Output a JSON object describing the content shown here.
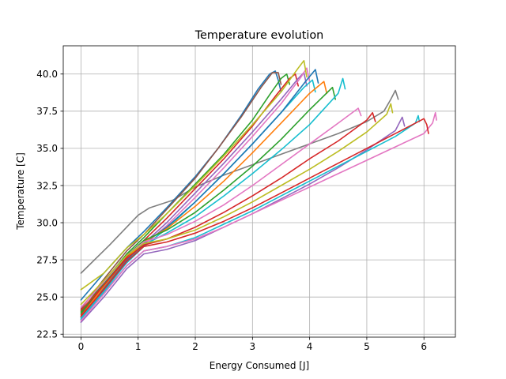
{
  "chart_data": {
    "type": "line",
    "title": "Temperature evolution",
    "xlabel": "Energy Consumed [J]",
    "ylabel": "Temperature [C]",
    "xlim": [
      -0.31,
      6.55
    ],
    "ylim": [
      22.3,
      41.9
    ],
    "xticks": [
      0,
      1,
      2,
      3,
      4,
      5,
      6
    ],
    "yticks": [
      22.5,
      25.0,
      27.5,
      30.0,
      32.5,
      35.0,
      37.5,
      40.0
    ],
    "ytick_labels": [
      "22.5",
      "25.0",
      "27.5",
      "30.0",
      "32.5",
      "35.0",
      "37.5",
      "40.0"
    ],
    "grid": true,
    "legend": "none",
    "palette": [
      "#1f77b4",
      "#ff7f0e",
      "#2ca02c",
      "#d62728",
      "#9467bd",
      "#8c564b",
      "#e377c2",
      "#7f7f7f",
      "#bcbd22",
      "#17becf"
    ],
    "series": [
      {
        "color": "#7f7f7f",
        "x": [
          0,
          0.5,
          1.0,
          1.2,
          1.6,
          2.0,
          2.5,
          3.0,
          3.5,
          4.0,
          4.5,
          5.0,
          5.3,
          5.42,
          5.5,
          5.55
        ],
        "y": [
          26.6,
          28.5,
          30.5,
          31.0,
          31.5,
          32.4,
          33.2,
          33.9,
          34.6,
          35.3,
          36.0,
          36.8,
          37.5,
          38.3,
          38.9,
          38.3
        ]
      },
      {
        "color": "#1f77b4",
        "x": [
          0,
          0.4,
          0.8,
          1.1,
          1.5,
          2.0,
          2.4,
          2.8,
          3.1,
          3.3,
          3.4,
          3.45,
          3.5
        ],
        "y": [
          24.8,
          26.6,
          28.3,
          29.4,
          31.0,
          33.1,
          35.0,
          37.2,
          39.0,
          40.0,
          40.2,
          39.6,
          38.8
        ]
      },
      {
        "color": "#8c564b",
        "x": [
          0,
          0.4,
          0.8,
          1.1,
          1.5,
          2.0,
          2.4,
          2.8,
          3.15,
          3.35,
          3.45,
          3.5
        ],
        "y": [
          24.2,
          26.2,
          28.1,
          29.2,
          30.9,
          33.0,
          35.0,
          37.1,
          39.1,
          40.1,
          40.1,
          39.3
        ]
      },
      {
        "color": "#2ca02c",
        "x": [
          0,
          0.4,
          0.8,
          1.1,
          1.5,
          2.0,
          2.5,
          3.0,
          3.3,
          3.5,
          3.6,
          3.65
        ],
        "y": [
          24.0,
          26.0,
          27.9,
          29.0,
          30.6,
          32.6,
          34.6,
          36.9,
          38.6,
          39.7,
          40.0,
          39.3
        ]
      },
      {
        "color": "#d62728",
        "x": [
          0,
          0.4,
          0.8,
          1.1,
          1.5,
          2.0,
          2.5,
          3.0,
          3.4,
          3.65,
          3.75,
          3.8
        ],
        "y": [
          23.8,
          25.8,
          27.7,
          28.8,
          30.3,
          32.3,
          34.3,
          36.5,
          38.5,
          39.7,
          40.0,
          39.2
        ]
      },
      {
        "color": "#9467bd",
        "x": [
          0,
          0.4,
          0.8,
          1.1,
          1.5,
          2.0,
          2.5,
          3.0,
          3.5,
          3.8,
          3.9,
          3.95
        ],
        "y": [
          23.6,
          25.6,
          27.5,
          28.6,
          30.0,
          32.0,
          34.0,
          36.1,
          38.3,
          39.7,
          40.1,
          39.2
        ]
      },
      {
        "color": "#e377c2",
        "x": [
          0,
          0.4,
          0.8,
          1.1,
          1.5,
          2.0,
          2.5,
          3.0,
          3.5,
          3.85,
          3.95,
          4.0
        ],
        "y": [
          23.5,
          25.5,
          27.4,
          28.5,
          29.8,
          31.7,
          33.7,
          35.8,
          38.0,
          39.8,
          40.4,
          39.5
        ]
      },
      {
        "color": "#bcbd22",
        "x": [
          0,
          0.4,
          0.8,
          1.1,
          1.5,
          2.0,
          2.5,
          3.0,
          3.5,
          3.8,
          3.9,
          3.95
        ],
        "y": [
          25.5,
          26.6,
          28.3,
          29.2,
          30.6,
          32.5,
          34.5,
          36.6,
          38.8,
          40.4,
          40.9,
          39.8
        ]
      },
      {
        "color": "#17becf",
        "x": [
          0,
          0.4,
          0.8,
          1.1,
          1.5,
          2.0,
          2.5,
          3.0,
          3.5,
          3.9,
          4.05,
          4.1
        ],
        "y": [
          23.4,
          25.4,
          27.3,
          28.4,
          29.6,
          31.4,
          33.3,
          35.3,
          37.4,
          39.1,
          39.6,
          38.8
        ]
      },
      {
        "color": "#1f77b4",
        "x": [
          0,
          0.4,
          0.8,
          1.1,
          1.5,
          2.0,
          2.5,
          3.0,
          3.5,
          3.95,
          4.1,
          4.15
        ],
        "y": [
          23.6,
          25.6,
          27.5,
          28.6,
          29.7,
          31.4,
          33.3,
          35.3,
          37.4,
          39.6,
          40.3,
          39.4
        ]
      },
      {
        "color": "#ff7f0e",
        "x": [
          0,
          0.4,
          0.8,
          1.1,
          1.5,
          2.0,
          2.5,
          3.0,
          3.5,
          4.0,
          4.25,
          4.3
        ],
        "y": [
          23.7,
          25.7,
          27.6,
          28.7,
          29.6,
          31.1,
          32.8,
          34.7,
          36.7,
          38.7,
          39.5,
          38.7
        ]
      },
      {
        "color": "#2ca02c",
        "x": [
          0,
          0.4,
          0.8,
          1.1,
          1.5,
          2.0,
          2.5,
          3.0,
          3.5,
          4.0,
          4.4,
          4.45
        ],
        "y": [
          23.9,
          25.9,
          27.8,
          28.8,
          29.5,
          30.7,
          32.2,
          33.8,
          35.6,
          37.6,
          39.1,
          38.3
        ]
      },
      {
        "color": "#17becf",
        "x": [
          0,
          0.4,
          0.8,
          1.1,
          1.5,
          2.0,
          2.5,
          3.0,
          3.5,
          4.0,
          4.5,
          4.58,
          4.62
        ],
        "y": [
          23.5,
          25.5,
          27.4,
          28.5,
          29.3,
          30.4,
          31.8,
          33.3,
          34.9,
          36.6,
          38.7,
          39.7,
          39.0
        ]
      },
      {
        "color": "#e377c2",
        "x": [
          0,
          0.4,
          0.8,
          1.1,
          1.5,
          2.0,
          2.5,
          3.0,
          3.5,
          4.0,
          4.5,
          4.85,
          4.9
        ],
        "y": [
          24.3,
          26.0,
          27.8,
          28.7,
          29.2,
          30.1,
          31.2,
          32.5,
          33.9,
          35.3,
          36.7,
          37.7,
          37.2
        ]
      },
      {
        "color": "#d62728",
        "x": [
          0,
          0.4,
          0.8,
          1.1,
          1.5,
          2.0,
          2.5,
          3.0,
          3.5,
          4.0,
          4.5,
          5.0,
          5.1,
          5.15
        ],
        "y": [
          24.1,
          25.8,
          27.6,
          28.5,
          28.9,
          29.7,
          30.7,
          31.8,
          33.0,
          34.3,
          35.5,
          36.9,
          37.4,
          36.8
        ]
      },
      {
        "color": "#bcbd22",
        "x": [
          0,
          0.4,
          0.8,
          1.1,
          1.5,
          2.0,
          2.5,
          3.0,
          3.5,
          4.0,
          4.5,
          5.0,
          5.35,
          5.42,
          5.45
        ],
        "y": [
          24.5,
          26.1,
          27.8,
          28.6,
          28.9,
          29.5,
          30.4,
          31.4,
          32.5,
          33.6,
          34.8,
          36.1,
          37.3,
          38.0,
          37.4
        ]
      },
      {
        "color": "#9467bd",
        "x": [
          0,
          0.4,
          0.8,
          1.1,
          1.5,
          2.0,
          2.5,
          3.0,
          3.5,
          4.0,
          4.5,
          5.0,
          5.5,
          5.62,
          5.66
        ],
        "y": [
          23.3,
          25.0,
          26.9,
          27.9,
          28.2,
          28.8,
          29.7,
          30.6,
          31.6,
          32.6,
          33.7,
          34.9,
          36.2,
          37.1,
          36.5
        ]
      },
      {
        "color": "#17becf",
        "x": [
          0,
          0.4,
          0.8,
          1.1,
          1.5,
          2.0,
          2.5,
          3.0,
          3.5,
          4.0,
          4.5,
          5.0,
          5.5,
          5.85,
          5.9,
          5.92
        ],
        "y": [
          23.6,
          25.3,
          27.1,
          28.1,
          28.4,
          29.0,
          29.9,
          30.8,
          31.8,
          32.8,
          33.8,
          34.8,
          35.8,
          36.7,
          37.2,
          36.8
        ]
      },
      {
        "color": "#e377c2",
        "x": [
          0,
          0.4,
          0.8,
          1.1,
          1.5,
          2.0,
          2.5,
          3.0,
          3.5,
          4.0,
          4.5,
          5.0,
          5.5,
          6.0,
          6.15,
          6.2,
          6.22
        ],
        "y": [
          23.4,
          25.2,
          27.1,
          28.1,
          28.4,
          28.9,
          29.7,
          30.6,
          31.5,
          32.4,
          33.3,
          34.2,
          35.1,
          36.0,
          36.7,
          37.4,
          36.9
        ]
      },
      {
        "color": "#d62728",
        "x": [
          0,
          0.4,
          0.8,
          1.1,
          1.5,
          2.0,
          2.5,
          3.0,
          3.5,
          4.0,
          4.5,
          5.0,
          5.5,
          5.8,
          6.0,
          6.05,
          6.08
        ],
        "y": [
          23.7,
          25.5,
          27.4,
          28.4,
          28.7,
          29.3,
          30.1,
          31.0,
          32.0,
          33.0,
          34.0,
          35.0,
          36.0,
          36.6,
          37.0,
          36.6,
          36.0
        ]
      }
    ]
  }
}
